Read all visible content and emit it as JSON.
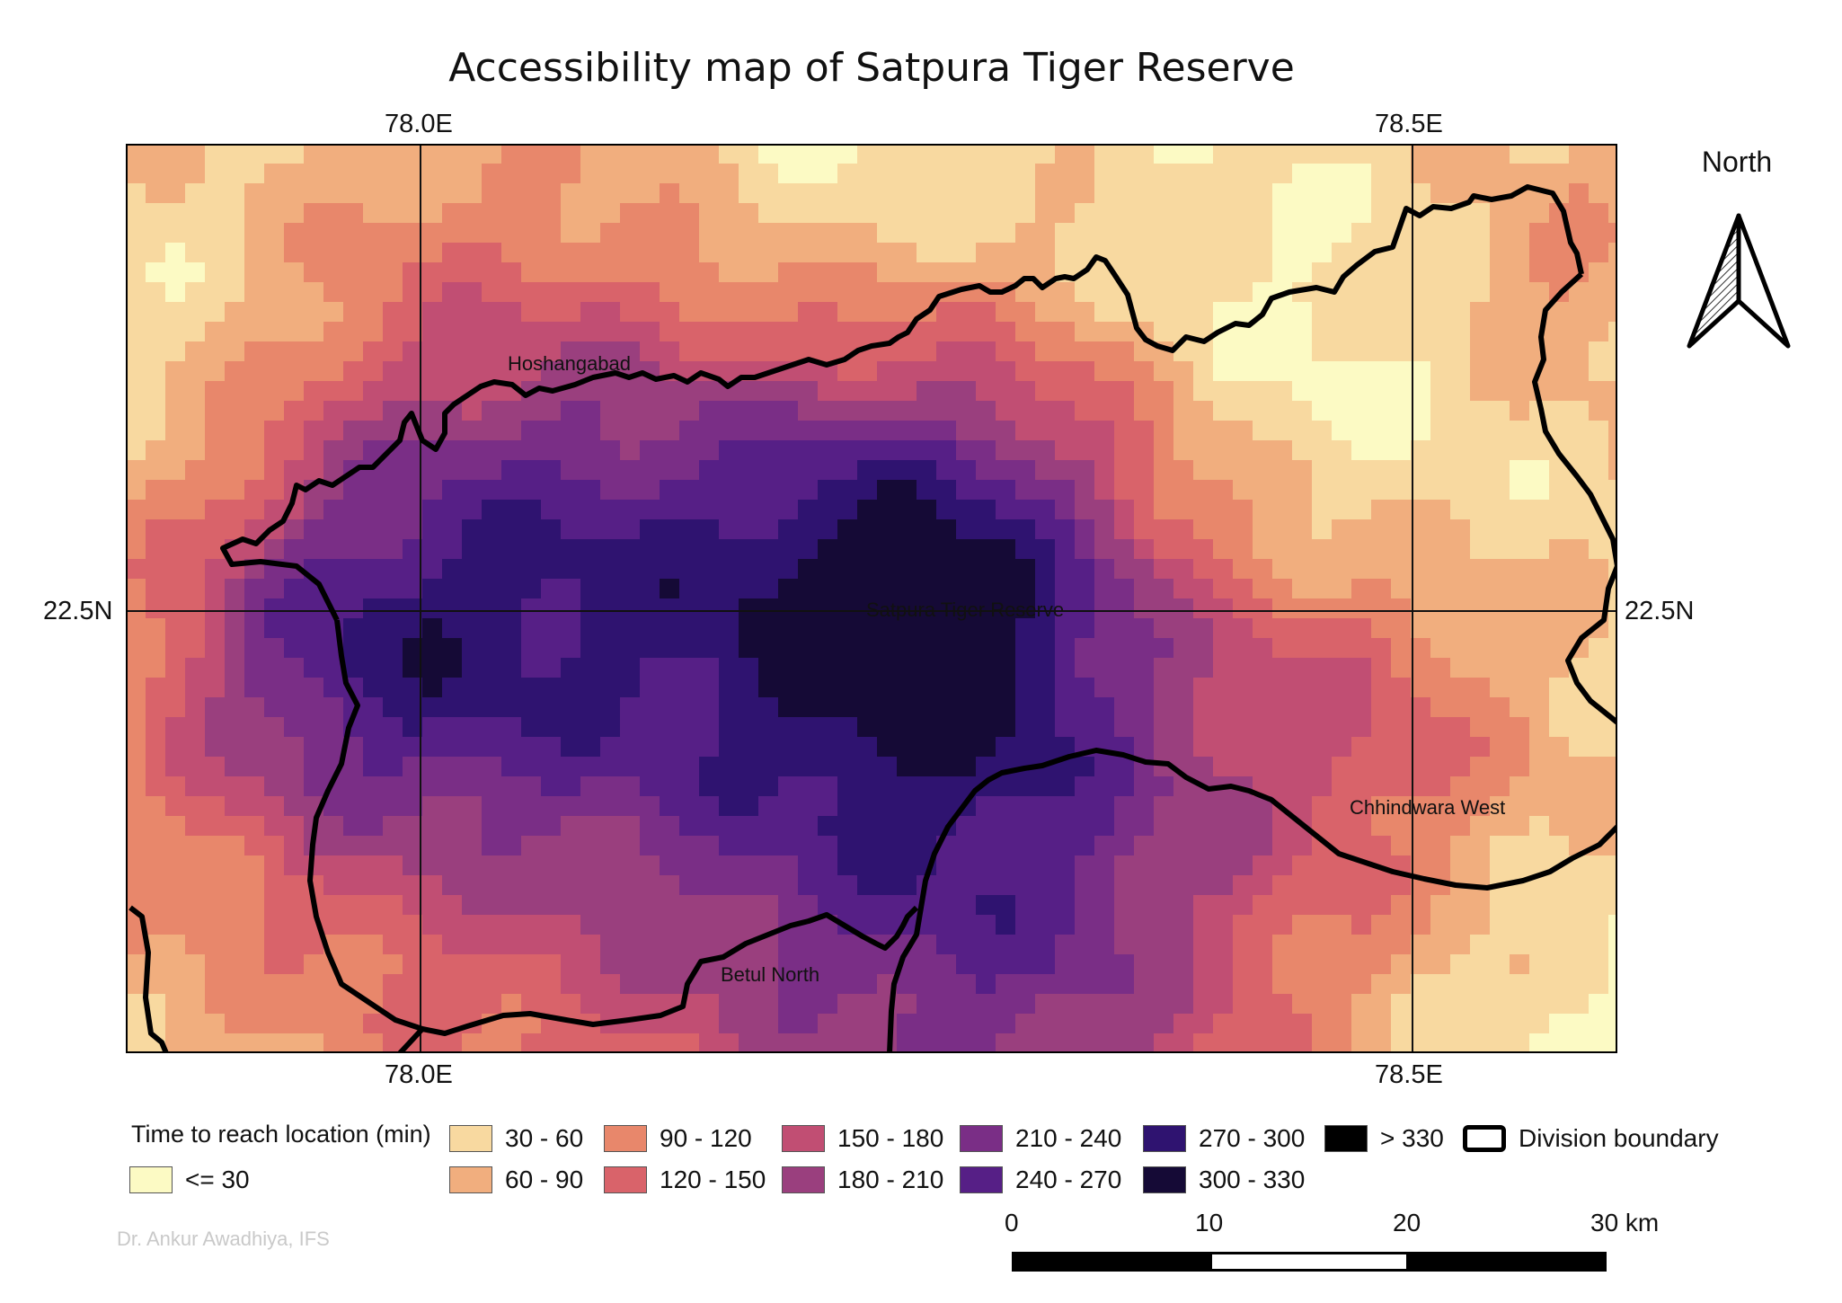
{
  "title": "Accessibility map of Satpura Tiger Reserve",
  "graticule": {
    "lon_labels": [
      "78.0E",
      "78.5E"
    ],
    "lat_labels": [
      "22.5N"
    ]
  },
  "places": [
    {
      "name": "Hoshangabad"
    },
    {
      "name": "Satpura Tiger Reserve"
    },
    {
      "name": "Chhindwara West"
    },
    {
      "name": "Betul North"
    }
  ],
  "north_arrow": {
    "label": "North",
    "icon": "north-arrow-icon"
  },
  "legend": {
    "title": "Time to reach location (min)",
    "classes": [
      {
        "label": "<= 30",
        "color": "#fcfac4"
      },
      {
        "label": "30 - 60",
        "color": "#f8d9a0"
      },
      {
        "label": "60 - 90",
        "color": "#f1ae7e"
      },
      {
        "label": "90 - 120",
        "color": "#e8876b"
      },
      {
        "label": "120 - 150",
        "color": "#d9636a"
      },
      {
        "label": "150 - 180",
        "color": "#c14e73"
      },
      {
        "label": "180 - 210",
        "color": "#9a3f7e"
      },
      {
        "label": "210 - 240",
        "color": "#7a2e86"
      },
      {
        "label": "240 - 270",
        "color": "#561f86"
      },
      {
        "label": "270 - 300",
        "color": "#2f1370"
      },
      {
        "label": "300 - 330",
        "color": "#150a36"
      },
      {
        "label": "> 330",
        "color": "#000000"
      }
    ],
    "boundary_label": "Division boundary"
  },
  "scale_bar": {
    "ticks": [
      "0",
      "10",
      "20",
      "30 km"
    ]
  },
  "credit": "Dr. Ankur Awadhiya, IFS"
}
